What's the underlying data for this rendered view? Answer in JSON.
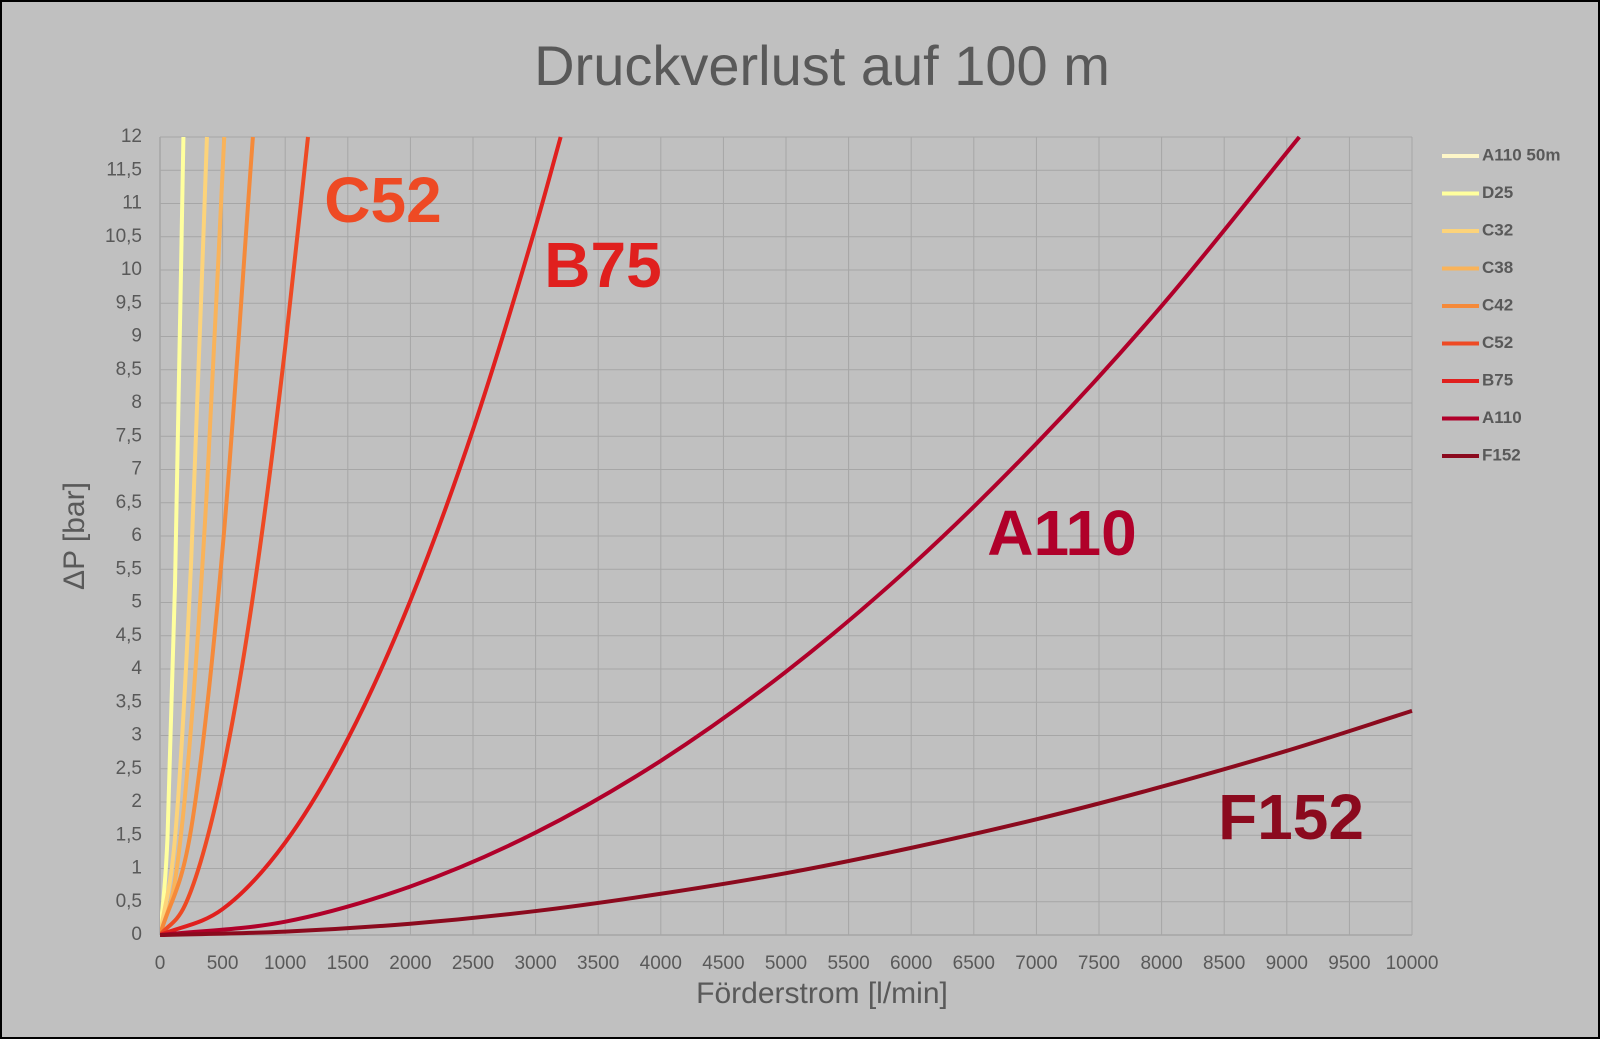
{
  "chart_data": {
    "type": "line",
    "title": "Druckverlust auf 100 m",
    "x_label": "Förderstrom [l/min]",
    "y_label": "ΔP [bar]",
    "xlim": [
      0,
      10000
    ],
    "xticks": [
      0,
      500,
      1000,
      1500,
      2000,
      2500,
      3000,
      3500,
      4000,
      4500,
      5000,
      5500,
      6000,
      6500,
      7000,
      7500,
      8000,
      8500,
      9000,
      9500,
      10000
    ],
    "ylim": [
      0,
      12
    ],
    "yticks": [
      0,
      {
        "value": 0.5,
        "label": "0,5"
      },
      1,
      {
        "value": 1.5,
        "label": "1,5"
      },
      2,
      {
        "value": 2.5,
        "label": "2,5"
      },
      3,
      {
        "value": 3.5,
        "label": "3,5"
      },
      4,
      {
        "value": 4.5,
        "label": "4,5"
      },
      5,
      {
        "value": 5.5,
        "label": "5,5"
      },
      6,
      {
        "value": 6.5,
        "label": "6,5"
      },
      7,
      {
        "value": 7.5,
        "label": "7,5"
      },
      8,
      {
        "value": 8.5,
        "label": "8,5"
      },
      9,
      {
        "value": 9.5,
        "label": "9,5"
      },
      10,
      {
        "value": 10.5,
        "label": "10,5"
      },
      11,
      {
        "value": 11.5,
        "label": "11,5"
      },
      12
    ],
    "grid": true,
    "legend": "right",
    "series": [
      {
        "name": "A110 50m",
        "color": "#fdf6c8",
        "x": [],
        "values": []
      },
      {
        "name": "D25",
        "color": "#ffff9e",
        "x": [
          0,
          60,
          120,
          187
        ],
        "values": [
          0,
          1.47,
          5.28,
          12
        ]
      },
      {
        "name": "C32",
        "color": "#fcd37a",
        "x": [
          0,
          125,
          250,
          375
        ],
        "values": [
          0,
          1.57,
          5.67,
          12
        ]
      },
      {
        "name": "C38",
        "color": "#f9b35a",
        "x": [
          0,
          125,
          250,
          375,
          513
        ],
        "values": [
          0,
          0.88,
          3.17,
          6.72,
          12
        ]
      },
      {
        "name": "C42",
        "color": "#f58a3a",
        "x": [
          0,
          250,
          500,
          742
        ],
        "values": [
          0,
          1.61,
          5.81,
          12
        ]
      },
      {
        "name": "C52",
        "color": "#ee4a24",
        "x": [
          0,
          200,
          400,
          600,
          800,
          1000,
          1182
        ],
        "values": [
          0,
          0.45,
          1.62,
          3.43,
          5.85,
          8.84,
          12
        ]
      },
      {
        "name": "B75",
        "color": "#e0201e",
        "x": [
          0,
          500,
          1000,
          1500,
          2000,
          2500,
          3000,
          3200
        ],
        "values": [
          0,
          0.39,
          1.39,
          2.95,
          5.03,
          7.6,
          10.65,
          12
        ]
      },
      {
        "name": "A110",
        "color": "#b0002a",
        "x": [
          0,
          1000,
          2000,
          3000,
          4000,
          5000,
          6000,
          7000,
          8000,
          9100
        ],
        "values": [
          0,
          0.2,
          0.73,
          1.54,
          2.62,
          3.96,
          5.55,
          7.39,
          9.46,
          12
        ]
      },
      {
        "name": "F152",
        "color": "#8b0a1e",
        "x": [
          0,
          1000,
          2000,
          3000,
          4000,
          5000,
          6000,
          7000,
          8000,
          9000,
          10000
        ],
        "values": [
          0,
          0.05,
          0.17,
          0.36,
          0.62,
          0.93,
          1.31,
          1.74,
          2.23,
          2.77,
          3.37
        ]
      }
    ],
    "annotations": [
      {
        "text": "C52",
        "color": "#ee4a24"
      },
      {
        "text": "B75",
        "color": "#e0201e"
      },
      {
        "text": "A110",
        "color": "#b0002a"
      },
      {
        "text": "F152",
        "color": "#8b0a1e"
      }
    ]
  }
}
